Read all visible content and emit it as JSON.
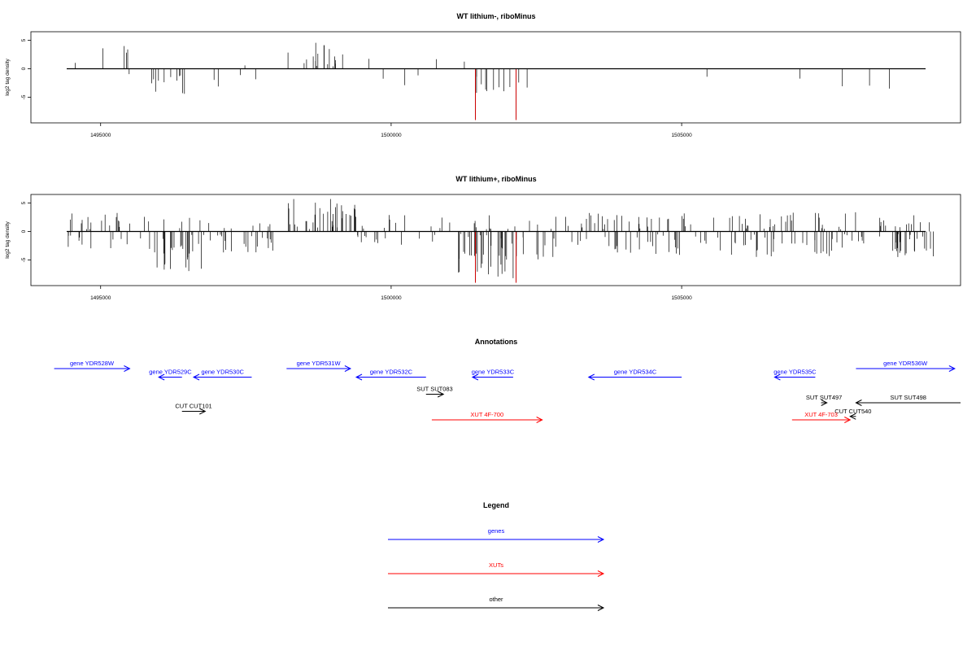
{
  "chart_data": [
    {
      "type": "bar",
      "title": "WT lithium-, riboMinus",
      "ylabel": "log2 tag density",
      "x_ticks": [
        1495000,
        1500000,
        1505000
      ],
      "x_tick_labels": [
        "1495000",
        "1500000",
        "1505000"
      ],
      "y_ticks": [
        -5,
        0,
        5
      ],
      "y_tick_labels": [
        "-5",
        "0",
        "5"
      ],
      "xlim": [
        1493800,
        1509800
      ],
      "ylim": [
        -9.5,
        6.5
      ],
      "highlight_color": "#cc0000",
      "highlight": [
        {
          "x": 1501450,
          "y": -9
        },
        {
          "x": 1502150,
          "y": -9
        }
      ],
      "profile": [
        {
          "from": 1494300,
          "to": 1494700,
          "sign": 1,
          "max": 2.5,
          "density": 0.02
        },
        {
          "from": 1494300,
          "to": 1494700,
          "sign": -1,
          "max": 3,
          "density": 0.01
        },
        {
          "from": 1494900,
          "to": 1495700,
          "sign": 1,
          "max": 4,
          "density": 0.05
        },
        {
          "from": 1494900,
          "to": 1495700,
          "sign": -1,
          "max": 2,
          "density": 0.015
        },
        {
          "from": 1495800,
          "to": 1496500,
          "sign": -1,
          "max": 5,
          "density": 0.15
        },
        {
          "from": 1496500,
          "to": 1497700,
          "sign": -1,
          "max": 3.5,
          "density": 0.03
        },
        {
          "from": 1496500,
          "to": 1497700,
          "sign": 1,
          "max": 1,
          "density": 0.01
        },
        {
          "from": 1498200,
          "to": 1499400,
          "sign": 1,
          "max": 4.8,
          "density": 0.14
        },
        {
          "from": 1499600,
          "to": 1500900,
          "sign": -1,
          "max": 3,
          "density": 0.02
        },
        {
          "from": 1499600,
          "to": 1500900,
          "sign": 1,
          "max": 2.5,
          "density": 0.015
        },
        {
          "from": 1501000,
          "to": 1501400,
          "sign": 1,
          "max": 2.5,
          "density": 0.015
        },
        {
          "from": 1501400,
          "to": 1502200,
          "sign": -1,
          "max": 4.5,
          "density": 0.12
        },
        {
          "from": 1502200,
          "to": 1502800,
          "sign": -1,
          "max": 4,
          "density": 0.01
        },
        {
          "from": 1502200,
          "to": 1502800,
          "sign": 1,
          "max": 2.5,
          "density": 0.008
        },
        {
          "from": 1505400,
          "to": 1509400,
          "sign": -1,
          "max": 3.5,
          "density": 0.012
        }
      ]
    },
    {
      "type": "bar",
      "title": "WT lithium+, riboMinus",
      "ylabel": "log2 tag density",
      "x_ticks": [
        1495000,
        1500000,
        1505000
      ],
      "x_tick_labels": [
        "1495000",
        "1500000",
        "1505000"
      ],
      "y_ticks": [
        -5,
        0,
        5
      ],
      "y_tick_labels": [
        "-5",
        "0",
        "5"
      ],
      "xlim": [
        1493800,
        1509800
      ],
      "ylim": [
        -9.5,
        6.5
      ],
      "highlight_color": "#cc0000",
      "highlight": [
        {
          "x": 1501450,
          "y": -9
        },
        {
          "x": 1502150,
          "y": -9
        }
      ],
      "profile": [
        {
          "from": 1494300,
          "to": 1495800,
          "sign": 1,
          "max": 3.5,
          "density": 0.12
        },
        {
          "from": 1494300,
          "to": 1495800,
          "sign": -1,
          "max": 3,
          "density": 0.08
        },
        {
          "from": 1495800,
          "to": 1496800,
          "sign": -1,
          "max": 7,
          "density": 0.25
        },
        {
          "from": 1495800,
          "to": 1496800,
          "sign": 1,
          "max": 2.5,
          "density": 0.06
        },
        {
          "from": 1496800,
          "to": 1498200,
          "sign": -1,
          "max": 4,
          "density": 0.14
        },
        {
          "from": 1496800,
          "to": 1498200,
          "sign": 1,
          "max": 1.5,
          "density": 0.05
        },
        {
          "from": 1498200,
          "to": 1499400,
          "sign": 1,
          "max": 5.8,
          "density": 0.28
        },
        {
          "from": 1499400,
          "to": 1501000,
          "sign": -1,
          "max": 2.5,
          "density": 0.08
        },
        {
          "from": 1499400,
          "to": 1501000,
          "sign": 1,
          "max": 3,
          "density": 0.06
        },
        {
          "from": 1501000,
          "to": 1502200,
          "sign": -1,
          "max": 8.5,
          "density": 0.3
        },
        {
          "from": 1501000,
          "to": 1502200,
          "sign": 1,
          "max": 3.5,
          "density": 0.08
        },
        {
          "from": 1502200,
          "to": 1503200,
          "sign": -1,
          "max": 5,
          "density": 0.1
        },
        {
          "from": 1502200,
          "to": 1503200,
          "sign": 1,
          "max": 3,
          "density": 0.06
        },
        {
          "from": 1503200,
          "to": 1509400,
          "sign": -1,
          "max": 4.5,
          "density": 0.15
        },
        {
          "from": 1503200,
          "to": 1509400,
          "sign": 1,
          "max": 3.5,
          "density": 0.12
        }
      ]
    }
  ],
  "annotations": {
    "title": "Annotations",
    "items": [
      {
        "label": "gene YDR528W",
        "color": "#0000ff",
        "x1": 1494200,
        "x2": 1495500,
        "dir": "right",
        "row": 0
      },
      {
        "label": "gene YDR529C",
        "color": "#0000ff",
        "x1": 1496000,
        "x2": 1496400,
        "dir": "left",
        "row": 1
      },
      {
        "label": "gene YDR530C",
        "color": "#0000ff",
        "x1": 1496600,
        "x2": 1497600,
        "dir": "left",
        "row": 1
      },
      {
        "label": "gene YDR531W",
        "color": "#0000ff",
        "x1": 1498200,
        "x2": 1499300,
        "dir": "right",
        "row": 0
      },
      {
        "label": "gene YDR532C",
        "color": "#0000ff",
        "x1": 1499400,
        "x2": 1500600,
        "dir": "left",
        "row": 1
      },
      {
        "label": "gene YDR533C",
        "color": "#0000ff",
        "x1": 1501400,
        "x2": 1502100,
        "dir": "left",
        "row": 1
      },
      {
        "label": "gene YDR534C",
        "color": "#0000ff",
        "x1": 1503400,
        "x2": 1505000,
        "dir": "left",
        "row": 1
      },
      {
        "label": "gene YDR535C",
        "color": "#0000ff",
        "x1": 1506600,
        "x2": 1507300,
        "dir": "left",
        "row": 1
      },
      {
        "label": "gene YDR536W",
        "color": "#0000ff",
        "x1": 1508000,
        "x2": 1509700,
        "dir": "right",
        "row": 0
      },
      {
        "label": "SUT SUT083",
        "color": "#000000",
        "x1": 1500600,
        "x2": 1500900,
        "dir": "right",
        "row": 3
      },
      {
        "label": "CUT CUT101",
        "color": "#000000",
        "x1": 1496400,
        "x2": 1496800,
        "dir": "right",
        "row": 5
      },
      {
        "label": "XUT 4F-700",
        "color": "#ff0000",
        "x1": 1500700,
        "x2": 1502600,
        "dir": "right",
        "row": 6
      },
      {
        "label": "SUT SUT497",
        "color": "#000000",
        "x1": 1507400,
        "x2": 1507500,
        "dir": "right",
        "row": 4
      },
      {
        "label": "SUT SUT498",
        "color": "#000000",
        "x1": 1508000,
        "x2": 1509800,
        "dir": "left",
        "row": 4
      },
      {
        "label": "CUT CUT540",
        "color": "#000000",
        "x1": 1507900,
        "x2": 1508000,
        "dir": "left",
        "row": 5.6
      },
      {
        "label": "XUT 4F-703",
        "color": "#ff0000",
        "x1": 1506900,
        "x2": 1507900,
        "dir": "right",
        "row": 6
      }
    ]
  },
  "legend": {
    "title": "Legend",
    "items": [
      {
        "label": "genes",
        "color": "#0000ff"
      },
      {
        "label": "XUTs",
        "color": "#ff0000"
      },
      {
        "label": "other",
        "color": "#000000"
      }
    ]
  }
}
